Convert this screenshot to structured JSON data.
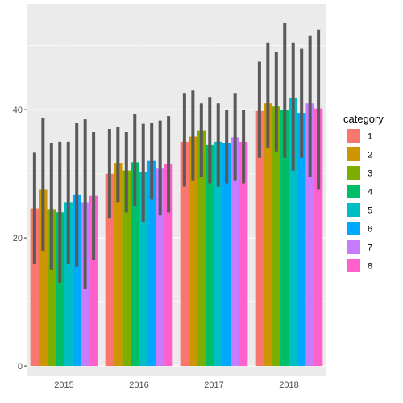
{
  "chart_data": {
    "type": "bar",
    "categories": [
      "2015",
      "2016",
      "2017",
      "2018"
    ],
    "legend": {
      "title": "category",
      "position": "right",
      "entries": [
        "1",
        "2",
        "3",
        "4",
        "5",
        "6",
        "7",
        "8"
      ]
    },
    "series": [
      {
        "name": "1",
        "color": "#F8766D",
        "values": [
          24.6,
          30.0,
          35.0,
          39.8
        ],
        "err_low": [
          16.0,
          23.0,
          28.0,
          32.5
        ],
        "err_high": [
          33.3,
          37.0,
          42.5,
          47.5
        ]
      },
      {
        "name": "2",
        "color": "#CD9600",
        "values": [
          27.5,
          31.7,
          35.8,
          41.0
        ],
        "err_low": [
          18.0,
          25.5,
          29.0,
          34.0
        ],
        "err_high": [
          38.7,
          37.3,
          43.0,
          50.5
        ]
      },
      {
        "name": "3",
        "color": "#7CAE00",
        "values": [
          24.5,
          30.5,
          36.8,
          40.5
        ],
        "err_low": [
          15.0,
          24.0,
          29.5,
          33.5
        ],
        "err_high": [
          34.8,
          36.5,
          41.0,
          49.0
        ]
      },
      {
        "name": "4",
        "color": "#00BE67",
        "values": [
          24.0,
          31.8,
          34.5,
          40.0
        ],
        "err_low": [
          13.0,
          25.0,
          28.5,
          32.5
        ],
        "err_high": [
          35.0,
          39.3,
          42.0,
          53.5
        ]
      },
      {
        "name": "5",
        "color": "#00BFC4",
        "values": [
          25.5,
          30.3,
          35.0,
          41.8
        ],
        "err_low": [
          16.0,
          22.5,
          28.0,
          30.5
        ],
        "err_high": [
          35.0,
          37.8,
          41.0,
          50.5
        ]
      },
      {
        "name": "6",
        "color": "#00A9FF",
        "values": [
          26.7,
          32.0,
          34.8,
          39.5
        ],
        "err_low": [
          15.5,
          26.0,
          28.5,
          32.5
        ],
        "err_high": [
          38.0,
          38.0,
          40.0,
          49.5
        ]
      },
      {
        "name": "7",
        "color": "#C77CFF",
        "values": [
          25.5,
          30.8,
          35.7,
          41.0
        ],
        "err_low": [
          12.0,
          23.5,
          29.0,
          29.5
        ],
        "err_high": [
          38.5,
          38.3,
          42.5,
          51.5
        ]
      },
      {
        "name": "8",
        "color": "#FF61CC",
        "values": [
          26.6,
          31.5,
          35.0,
          40.2
        ],
        "err_low": [
          16.5,
          24.0,
          28.5,
          27.5
        ],
        "err_high": [
          36.5,
          39.0,
          40.0,
          52.5
        ]
      }
    ],
    "ylim": [
      -1.5,
      56.5
    ],
    "y_ticks": [
      0,
      20,
      40
    ],
    "y_tick_labels": [
      "0",
      "20",
      "40"
    ],
    "xlabel": "",
    "ylabel": "",
    "grid": true
  }
}
